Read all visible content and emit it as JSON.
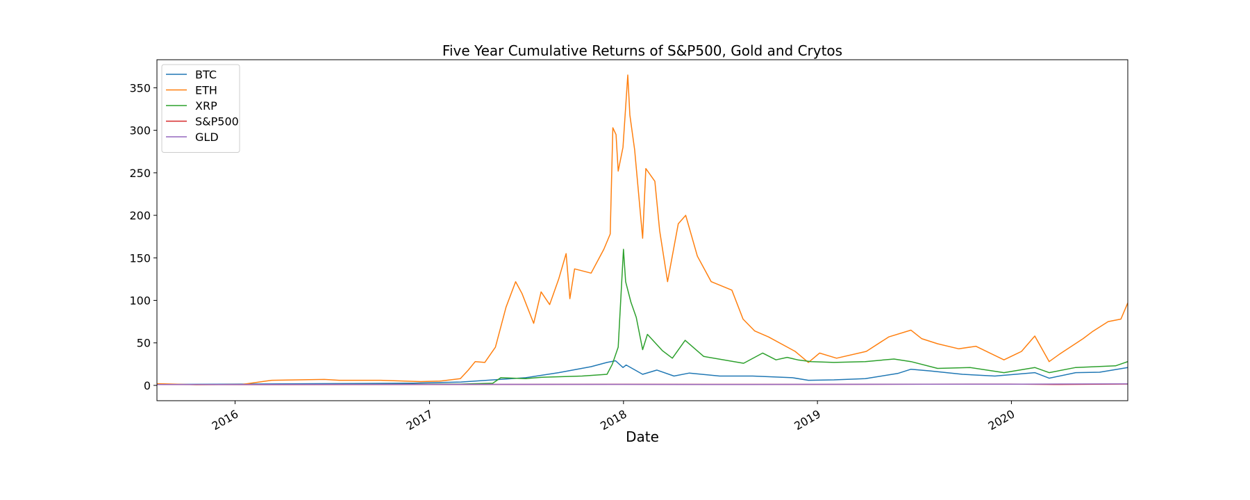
{
  "chart_data": {
    "type": "line",
    "title": "Five Year Cumulative Returns of S&P500, Gold and Crytos",
    "xlabel": "Date",
    "ylabel": "",
    "xlim": [
      "2015-08-07",
      "2020-08-07"
    ],
    "ylim": [
      -18,
      383
    ],
    "x_ticks": [
      "2016-01-01",
      "2017-01-01",
      "2018-01-01",
      "2019-01-01",
      "2020-01-01"
    ],
    "x_tick_labels": [
      "2016",
      "2017",
      "2018",
      "2019",
      "2020"
    ],
    "y_ticks": [
      0,
      50,
      100,
      150,
      200,
      250,
      300,
      350
    ],
    "y_tick_labels": [
      "0",
      "50",
      "100",
      "150",
      "200",
      "250",
      "300",
      "350"
    ],
    "grid": false,
    "legend_position": "upper-left",
    "series": [
      {
        "name": "BTC",
        "color": "#1f77b4",
        "points": [
          [
            "2015-08-07",
            1.0
          ],
          [
            "2016-01-01",
            1.5
          ],
          [
            "2016-06-01",
            2.0
          ],
          [
            "2016-12-01",
            2.7
          ],
          [
            "2017-03-01",
            4.0
          ],
          [
            "2017-05-01",
            6.5
          ],
          [
            "2017-07-01",
            9.0
          ],
          [
            "2017-09-01",
            15.0
          ],
          [
            "2017-11-01",
            22.0
          ],
          [
            "2017-12-01",
            27.0
          ],
          [
            "2017-12-17",
            29.0
          ],
          [
            "2017-12-31",
            21.0
          ],
          [
            "2018-01-06",
            24.0
          ],
          [
            "2018-02-06",
            13.0
          ],
          [
            "2018-03-05",
            18.0
          ],
          [
            "2018-04-06",
            11.0
          ],
          [
            "2018-05-05",
            14.5
          ],
          [
            "2018-07-01",
            11.0
          ],
          [
            "2018-09-01",
            11.0
          ],
          [
            "2018-11-15",
            9.0
          ],
          [
            "2018-12-15",
            6.0
          ],
          [
            "2019-02-01",
            6.5
          ],
          [
            "2019-04-01",
            8.0
          ],
          [
            "2019-06-01",
            14.0
          ],
          [
            "2019-06-26",
            19.0
          ],
          [
            "2019-08-01",
            17.0
          ],
          [
            "2019-10-01",
            13.0
          ],
          [
            "2019-12-01",
            11.0
          ],
          [
            "2020-02-14",
            15.0
          ],
          [
            "2020-03-12",
            8.5
          ],
          [
            "2020-05-01",
            15.0
          ],
          [
            "2020-06-15",
            15.5
          ],
          [
            "2020-08-07",
            21.0
          ]
        ]
      },
      {
        "name": "ETH",
        "color": "#ff7f0e",
        "points": [
          [
            "2015-08-07",
            2.0
          ],
          [
            "2015-10-20",
            0.8
          ],
          [
            "2016-01-15",
            1.2
          ],
          [
            "2016-03-10",
            6.0
          ],
          [
            "2016-06-17",
            7.0
          ],
          [
            "2016-07-15",
            6.0
          ],
          [
            "2016-10-01",
            6.0
          ],
          [
            "2016-12-15",
            4.5
          ],
          [
            "2017-01-20",
            5.0
          ],
          [
            "2017-02-28",
            8.0
          ],
          [
            "2017-03-15",
            18.0
          ],
          [
            "2017-03-28",
            28.0
          ],
          [
            "2017-04-15",
            27.0
          ],
          [
            "2017-05-05",
            45.0
          ],
          [
            "2017-05-25",
            92.0
          ],
          [
            "2017-06-12",
            122.0
          ],
          [
            "2017-06-24",
            108.0
          ],
          [
            "2017-07-16",
            73.0
          ],
          [
            "2017-07-30",
            110.0
          ],
          [
            "2017-08-15",
            95.0
          ],
          [
            "2017-09-01",
            125.0
          ],
          [
            "2017-09-15",
            155.0
          ],
          [
            "2017-09-22",
            102.0
          ],
          [
            "2017-10-01",
            137.0
          ],
          [
            "2017-11-01",
            132.0
          ],
          [
            "2017-11-25",
            160.0
          ],
          [
            "2017-12-07",
            178.0
          ],
          [
            "2017-12-12",
            303.0
          ],
          [
            "2017-12-18",
            295.0
          ],
          [
            "2017-12-22",
            252.0
          ],
          [
            "2017-12-31",
            280.0
          ],
          [
            "2018-01-09",
            365.0
          ],
          [
            "2018-01-13",
            318.0
          ],
          [
            "2018-01-22",
            277.0
          ],
          [
            "2018-02-06",
            173.0
          ],
          [
            "2018-02-12",
            255.0
          ],
          [
            "2018-03-01",
            240.0
          ],
          [
            "2018-03-10",
            182.0
          ],
          [
            "2018-03-25",
            122.0
          ],
          [
            "2018-04-14",
            190.0
          ],
          [
            "2018-04-28",
            200.0
          ],
          [
            "2018-05-20",
            152.0
          ],
          [
            "2018-06-15",
            122.0
          ],
          [
            "2018-07-24",
            112.0
          ],
          [
            "2018-08-14",
            78.0
          ],
          [
            "2018-09-05",
            64.0
          ],
          [
            "2018-10-01",
            57.0
          ],
          [
            "2018-11-20",
            40.0
          ],
          [
            "2018-12-15",
            27.0
          ],
          [
            "2019-01-05",
            38.0
          ],
          [
            "2019-02-06",
            32.0
          ],
          [
            "2019-04-03",
            40.0
          ],
          [
            "2019-05-15",
            57.0
          ],
          [
            "2019-06-26",
            65.0
          ],
          [
            "2019-07-16",
            55.0
          ],
          [
            "2019-08-15",
            49.0
          ],
          [
            "2019-09-24",
            43.0
          ],
          [
            "2019-10-26",
            46.0
          ],
          [
            "2019-12-18",
            30.0
          ],
          [
            "2020-01-20",
            40.0
          ],
          [
            "2020-02-14",
            58.0
          ],
          [
            "2020-03-12",
            28.0
          ],
          [
            "2020-04-01",
            37.0
          ],
          [
            "2020-05-15",
            55.0
          ],
          [
            "2020-06-01",
            63.0
          ],
          [
            "2020-07-01",
            75.0
          ],
          [
            "2020-07-25",
            78.0
          ],
          [
            "2020-08-07",
            97.0
          ]
        ]
      },
      {
        "name": "XRP",
        "color": "#2ca02c",
        "points": [
          [
            "2015-08-07",
            1.0
          ],
          [
            "2016-06-01",
            1.0
          ],
          [
            "2017-03-01",
            1.5
          ],
          [
            "2017-04-30",
            2.5
          ],
          [
            "2017-05-15",
            9.0
          ],
          [
            "2017-07-01",
            8.0
          ],
          [
            "2017-08-01",
            9.5
          ],
          [
            "2017-10-15",
            11.0
          ],
          [
            "2017-12-01",
            13.0
          ],
          [
            "2017-12-11",
            25.0
          ],
          [
            "2017-12-22",
            45.0
          ],
          [
            "2018-01-01",
            160.0
          ],
          [
            "2018-01-05",
            122.0
          ],
          [
            "2018-01-15",
            98.0
          ],
          [
            "2018-01-25",
            80.0
          ],
          [
            "2018-02-06",
            42.0
          ],
          [
            "2018-02-15",
            60.0
          ],
          [
            "2018-03-15",
            41.0
          ],
          [
            "2018-04-03",
            32.0
          ],
          [
            "2018-04-27",
            53.0
          ],
          [
            "2018-06-01",
            34.0
          ],
          [
            "2018-08-15",
            26.0
          ],
          [
            "2018-09-20",
            38.0
          ],
          [
            "2018-10-15",
            30.0
          ],
          [
            "2018-11-05",
            33.0
          ],
          [
            "2018-11-25",
            30.0
          ],
          [
            "2018-12-20",
            28.0
          ],
          [
            "2019-02-01",
            27.0
          ],
          [
            "2019-04-01",
            28.0
          ],
          [
            "2019-05-25",
            31.0
          ],
          [
            "2019-06-26",
            28.0
          ],
          [
            "2019-08-15",
            20.0
          ],
          [
            "2019-10-15",
            21.0
          ],
          [
            "2019-12-18",
            15.0
          ],
          [
            "2020-02-14",
            21.0
          ],
          [
            "2020-03-12",
            15.0
          ],
          [
            "2020-05-01",
            21.0
          ],
          [
            "2020-07-15",
            23.0
          ],
          [
            "2020-08-07",
            28.0
          ]
        ]
      },
      {
        "name": "S&P500",
        "color": "#d62728",
        "points": [
          [
            "2015-08-07",
            1.0
          ],
          [
            "2016-02-11",
            0.9
          ],
          [
            "2016-12-31",
            1.1
          ],
          [
            "2017-12-31",
            1.3
          ],
          [
            "2018-12-24",
            1.2
          ],
          [
            "2019-12-31",
            1.55
          ],
          [
            "2020-03-23",
            1.1
          ],
          [
            "2020-08-07",
            1.6
          ]
        ]
      },
      {
        "name": "GLD",
        "color": "#9467bd",
        "points": [
          [
            "2015-08-07",
            1.0
          ],
          [
            "2016-07-01",
            1.2
          ],
          [
            "2017-12-31",
            1.2
          ],
          [
            "2018-09-01",
            1.1
          ],
          [
            "2019-12-31",
            1.4
          ],
          [
            "2020-08-07",
            1.8
          ]
        ]
      }
    ]
  }
}
